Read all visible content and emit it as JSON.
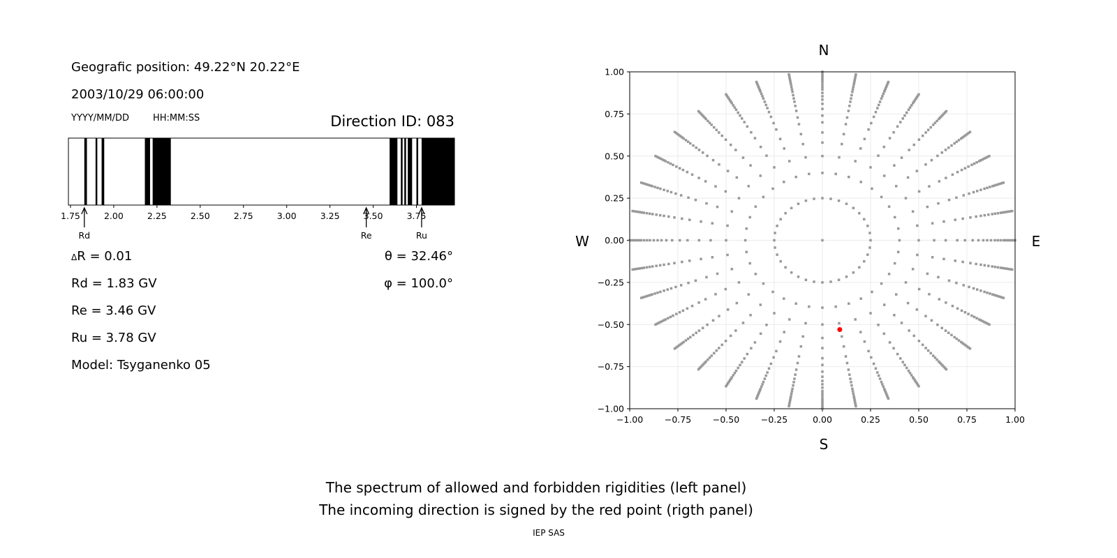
{
  "left_panel": {
    "position_text": "Geografic position: 49.22°N 20.22°E",
    "datetime": "2003/10/29 06:00:00",
    "date_format": "YYYY/MM/DD",
    "time_format": "HH:MM:SS",
    "direction_id": "Direction ID: 083",
    "delta_r": "R = 0.01",
    "delta_symbol": "Δ",
    "rd": "Rd = 1.83 GV",
    "re": "Re = 3.46 GV",
    "ru": "Ru = 3.78 GV",
    "model": "Model: Tsyganenko 05",
    "theta": "θ = 32.46°",
    "phi": "φ = 100.0°"
  },
  "right_panel": {
    "north": "N",
    "south": "S",
    "west": "W",
    "east": "E"
  },
  "captions": {
    "line1": "The spectrum of allowed and forbidden rigidities (left panel)",
    "line2": "The incoming direction is signed by the red point (rigth panel)",
    "credit": "IEP SAS"
  },
  "chart_data": [
    {
      "type": "bar",
      "description_kind": "rigidity spectrum",
      "xlim": [
        1.738,
        3.97
      ],
      "xticks": [
        "1.75",
        "2.00",
        "2.25",
        "2.50",
        "2.75",
        "3.00",
        "3.25",
        "3.50",
        "3.75"
      ],
      "forbidden_bands_color": "#000000",
      "allowed_color": "#ffffff",
      "forbidden_bands": [
        [
          1.83,
          1.845
        ],
        [
          1.895,
          1.905
        ],
        [
          1.93,
          1.945
        ],
        [
          2.18,
          2.21
        ],
        [
          2.225,
          2.33
        ],
        [
          3.595,
          3.64
        ],
        [
          3.66,
          3.67
        ],
        [
          3.68,
          3.69
        ],
        [
          3.7,
          3.725
        ],
        [
          3.75,
          3.76
        ],
        [
          3.78,
          3.97
        ]
      ],
      "markers": [
        {
          "label": "Rd",
          "value": 1.83
        },
        {
          "label": "Re",
          "value": 3.46
        },
        {
          "label": "Ru",
          "value": 3.78
        }
      ]
    },
    {
      "type": "scatter",
      "xlim": [
        -1,
        1
      ],
      "ylim": [
        -1,
        1
      ],
      "xticks": [
        "−1.00",
        "−0.75",
        "−0.50",
        "−0.25",
        "0.00",
        "0.25",
        "0.50",
        "0.75",
        "1.00"
      ],
      "yticks": [
        "−1.00",
        "−0.75",
        "−0.50",
        "−0.25",
        "0.00",
        "0.25",
        "0.50",
        "0.75",
        "1.00"
      ],
      "grid": true,
      "grid_color": "#ebebeb",
      "direction_grid": {
        "color": "#999999",
        "center_point": [
          0,
          0
        ],
        "inner_ring_radius": 0.25,
        "inner_ring_azimuth_step_deg": 10,
        "ray_azimuth_step_deg": 10,
        "ray_radii": [
          0.4,
          0.5,
          0.58,
          0.64,
          0.7,
          0.74,
          0.78,
          0.81,
          0.835,
          0.855,
          0.875,
          0.895,
          0.91,
          0.925,
          0.94,
          0.95,
          0.96,
          0.97,
          0.98,
          0.99,
          1.0
        ]
      },
      "incoming_direction": {
        "x": 0.09,
        "y": -0.53,
        "color": "#ff0000"
      }
    }
  ]
}
